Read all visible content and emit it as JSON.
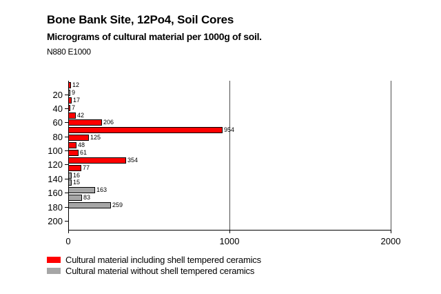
{
  "header": {
    "title": "Bone Bank Site, 12Po4, Soil Cores",
    "subtitle": "Micrograms of cultural material per 1000g of soil.",
    "location": "N880 E1000"
  },
  "colors": {
    "including": "#ff0000",
    "without": "#a6a6a6",
    "axis": "#000000",
    "gridline": "#4d4d4d",
    "background": "#ffffff"
  },
  "chart_data": {
    "type": "bar",
    "orientation": "horizontal",
    "title": "Bone Bank Site, 12Po4, Soil Cores",
    "subtitle": "Micrograms of cultural material per 1000g of soil.",
    "annotation": "N880 E1000",
    "xlabel": "",
    "ylabel": "",
    "xlim": [
      0,
      2000
    ],
    "x_ticks": [
      0,
      1000,
      2000
    ],
    "y_ticks": [
      20,
      40,
      60,
      80,
      100,
      120,
      140,
      160,
      180,
      200
    ],
    "grid": "vertical gridlines at 1000 and 2000",
    "legend_position": "bottom-left",
    "bars": [
      {
        "value": 12,
        "series": "including"
      },
      {
        "value": 9,
        "series": "without"
      },
      {
        "value": 17,
        "series": "including"
      },
      {
        "value": 7,
        "series": "including"
      },
      {
        "value": 42,
        "series": "including"
      },
      {
        "value": 206,
        "series": "including"
      },
      {
        "value": 954,
        "series": "including"
      },
      {
        "value": 125,
        "series": "including"
      },
      {
        "value": 48,
        "series": "including"
      },
      {
        "value": 61,
        "series": "including"
      },
      {
        "value": 354,
        "series": "including"
      },
      {
        "value": 77,
        "series": "including"
      },
      {
        "value": 16,
        "series": "without"
      },
      {
        "value": 15,
        "series": "without"
      },
      {
        "value": 163,
        "series": "without"
      },
      {
        "value": 83,
        "series": "without"
      },
      {
        "value": 259,
        "series": "without"
      }
    ],
    "legend": [
      {
        "series": "including",
        "color": "#ff0000",
        "label": "Cultural material including shell tempered ceramics"
      },
      {
        "series": "without",
        "color": "#a6a6a6",
        "label": "Cultural material without shell tempered ceramics"
      }
    ]
  }
}
